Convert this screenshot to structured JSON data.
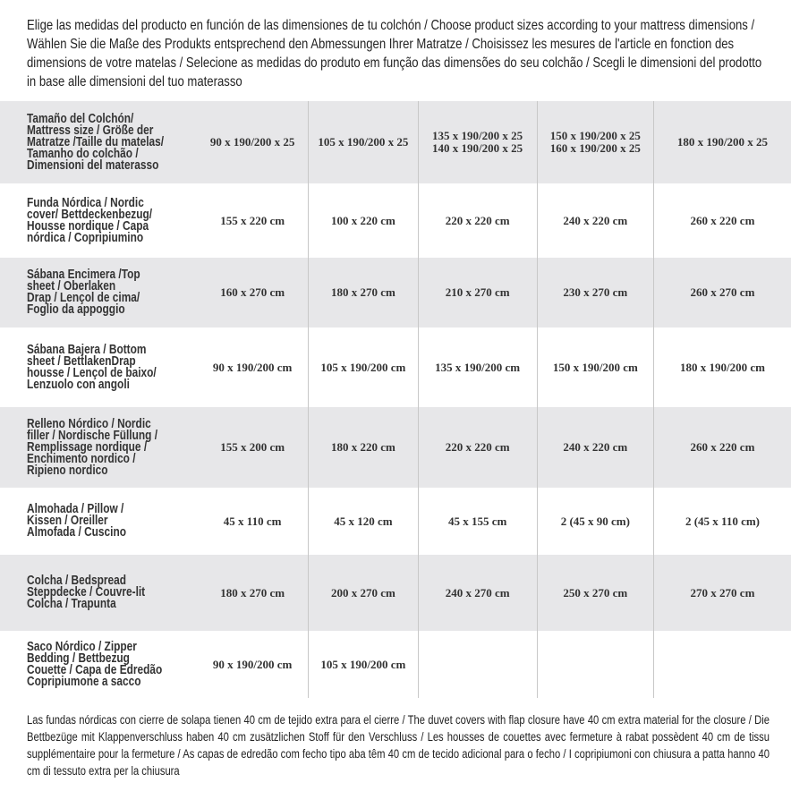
{
  "intro": "Elige las medidas del producto en función de las dimensiones de tu colchón / Choose product sizes according to your mattress dimensions / Wählen Sie die Maße des Produkts entsprechend den Abmessungen Ihrer Matratze / Choisissez les mesures de l'article en fonction des dimensions de votre matelas / Selecione as medidas do produto em função das dimensões do seu colchão / Scegli le dimensioni del prodotto in base alle dimensioni del tuo materasso",
  "rows": [
    {
      "label": "Tamaño del Colchón/\nMattress size / Größe der\nMatratze /Taille du matelas/\nTamanho do colchão /\nDimensioni del materasso",
      "values": [
        "90 x 190/200 x 25",
        "105 x 190/200 x 25",
        "135 x 190/200 x 25\n140 x 190/200 x 25",
        "150 x 190/200 x 25\n160 x 190/200 x 25",
        "180 x 190/200 x 25"
      ]
    },
    {
      "label": "Funda Nórdica /  Nordic\ncover/ Bettdeckenbezug/\nHousse nordique  / Capa\nnórdica / Copripiumino",
      "values": [
        "155 x 220 cm",
        "100 x 220 cm",
        "220 x 220 cm",
        "240 x 220 cm",
        "260 x 220 cm"
      ]
    },
    {
      "label": "Sábana Encimera /Top\nsheet / Oberlaken\nDrap / Lençol de cima/\nFoglio da appoggio",
      "values": [
        "160 x 270 cm",
        "180 x 270 cm",
        "210 x 270 cm",
        "230 x 270 cm",
        "260 x 270 cm"
      ]
    },
    {
      "label": "Sábana Bajera / Bottom\nsheet / BettlakenDrap\nhousse / Lençol de baixo/\nLenzuolo con angoli",
      "values": [
        "90 x 190/200 cm",
        "105 x 190/200 cm",
        "135 x 190/200 cm",
        "150 x 190/200 cm",
        "180 x 190/200 cm"
      ]
    },
    {
      "label": "Relleno Nórdico / Nordic\nfiller / Nordische Füllung /\nRemplissage nordique /\nEnchimento nordico /\nRipieno nordico",
      "values": [
        "155 x 200 cm",
        "180 x 220 cm",
        "220 x 220 cm",
        "240 x 220 cm",
        "260 x 220 cm"
      ]
    },
    {
      "label": "Almohada  / Pillow /\nKissen / Oreiller\nAlmofada / Cuscino",
      "values": [
        "45 x 110 cm",
        "45 x 120 cm",
        "45 x 155 cm",
        "2 (45 x 90 cm)",
        "2 (45 x 110 cm)"
      ]
    },
    {
      "label": "Colcha / Bedspread\nSteppdecke / Couvre-lit\nColcha / Trapunta",
      "values": [
        "180 x 270 cm",
        "200 x 270 cm",
        "240 x 270 cm",
        "250 x 270 cm",
        "270 x 270 cm"
      ]
    },
    {
      "label": "Saco Nórdico / Zipper\nBedding / Bettbezug\nCouette  / Capa de Edredão\nCopripiumone a sacco",
      "values": [
        "90 x 190/200 cm",
        "105 x 190/200 cm",
        "",
        "",
        ""
      ]
    }
  ],
  "footnote": "Las fundas nórdicas con cierre de solapa tienen 40 cm de tejido extra para el cierre  / The duvet covers with flap closure have 40 cm extra material for the closure / Die Bettbezüge mit Klappenverschluss haben 40 cm zusätzlichen Stoff für den Verschluss / Les housses de couettes avec fermeture à rabat possèdent 40 cm de tissu supplémentaire pour la fermeture / As capas de edredão com fecho tipo aba têm 40 cm de tecido adicional para o fecho / I copripiumoni con chiusura a patta hanno 40 cm di tessuto extra per la chiusura"
}
